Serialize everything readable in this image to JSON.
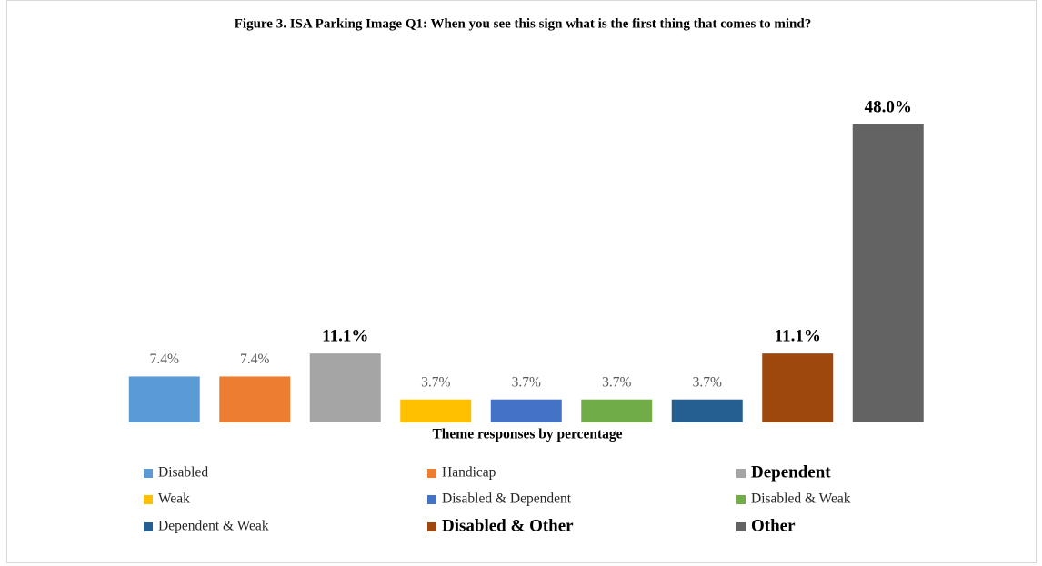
{
  "chart_data": {
    "type": "bar",
    "title": "Figure 3. ISA Parking Image Q1: When you see this sign what is the first thing that comes to mind?",
    "x_label": "Theme responses by percentage",
    "categories": [
      "Disabled",
      "Handicap",
      "Dependent",
      "Weak",
      "Disabled & Dependent",
      "Disabled & Weak",
      "Dependent & Weak",
      "Disabled & Other",
      "Other"
    ],
    "values": [
      7.4,
      7.4,
      11.1,
      3.7,
      3.7,
      3.7,
      3.7,
      11.1,
      48.0
    ],
    "value_labels": [
      "7.4%",
      "7.4%",
      "11.1%",
      "3.7%",
      "3.7%",
      "3.7%",
      "3.7%",
      "11.1%",
      "48.0%"
    ],
    "colors": [
      "#5b9bd5",
      "#ed7d31",
      "#a5a5a5",
      "#ffc000",
      "#4472c4",
      "#70ad47",
      "#255e91",
      "#9e480e",
      "#636363"
    ],
    "legend": "bottom"
  }
}
